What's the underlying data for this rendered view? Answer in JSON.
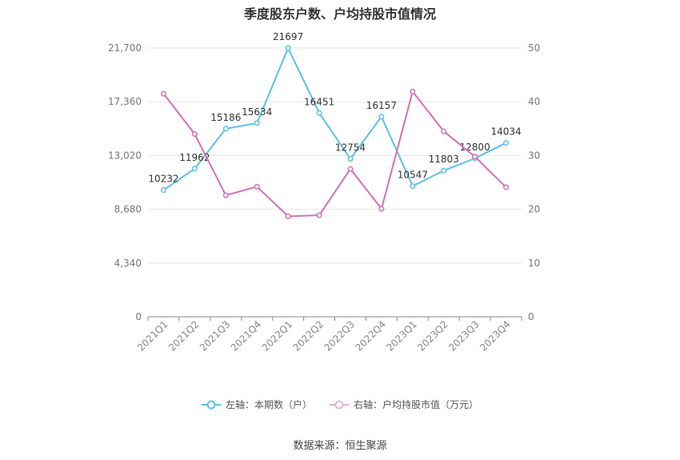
{
  "chart_data": {
    "type": "line",
    "title": "季度股东户数、户均持股市值情况",
    "categories": [
      "2021Q1",
      "2021Q2",
      "2021Q3",
      "2021Q4",
      "2022Q1",
      "2022Q2",
      "2022Q3",
      "2022Q4",
      "2023Q1",
      "2023Q2",
      "2023Q3",
      "2023Q4"
    ],
    "left_axis": {
      "min": 0,
      "max": 21700,
      "ticks": [
        "0",
        "4,340",
        "8,680",
        "13,020",
        "17,360",
        "21,700"
      ],
      "tick_values": [
        0,
        4340,
        8680,
        13020,
        17360,
        21700
      ]
    },
    "right_axis": {
      "min": 0,
      "max": 50,
      "ticks": [
        "0",
        "10",
        "20",
        "30",
        "40",
        "50"
      ],
      "tick_values": [
        0,
        10,
        20,
        30,
        40,
        50
      ]
    },
    "series": [
      {
        "name": "左轴：本期数（户）",
        "axis": "left",
        "color": "#5bc0eb",
        "values": [
          10232,
          11962,
          15186,
          15634,
          21697,
          16451,
          12754,
          16157,
          10547,
          11803,
          12800,
          14034
        ],
        "labels": [
          "10232",
          "11962",
          "15186",
          "15634",
          "21697",
          "16451",
          "12754",
          "16157",
          "10547",
          "11803",
          "12800",
          "14034"
        ]
      },
      {
        "name": "右轴：户均持股市值（万元）",
        "axis": "right",
        "color": "#d670b5",
        "values": [
          41.5,
          34,
          22.6,
          24.2,
          18.7,
          18.9,
          27.5,
          20.1,
          41.9,
          34.5,
          29.8,
          24.1
        ]
      }
    ],
    "grid": true,
    "legend_position": "bottom"
  },
  "source": "数据来源：恒生聚源"
}
